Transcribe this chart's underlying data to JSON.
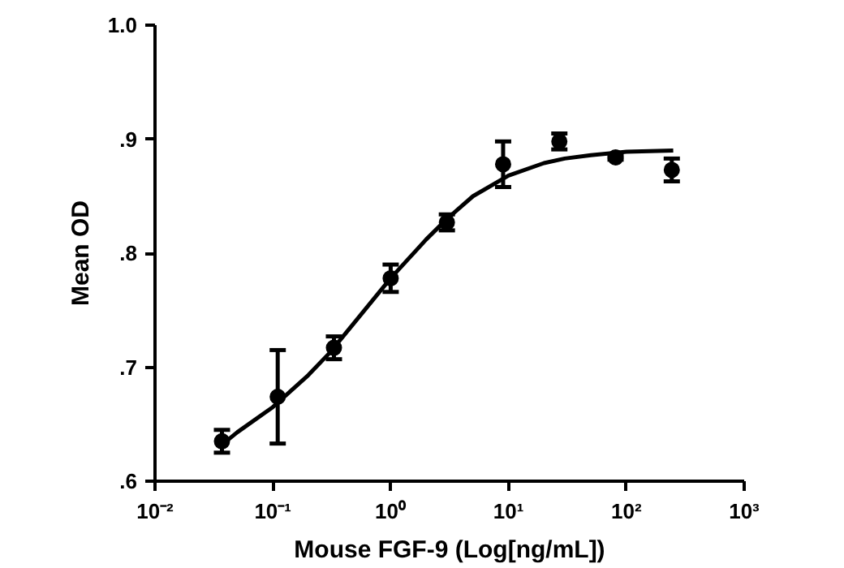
{
  "chart_data": {
    "type": "scatter",
    "xlabel": "Mouse FGF-9 (Log[ng/mL])",
    "ylabel": "Mean OD",
    "log": "x",
    "xlim": [
      0.01,
      1000
    ],
    "ylim": [
      0.6,
      1.0
    ],
    "grid": false,
    "xticks": [
      {
        "value": 0.01,
        "label": "10⁻²"
      },
      {
        "value": 0.1,
        "label": "10⁻¹"
      },
      {
        "value": 1,
        "label": "10⁰"
      },
      {
        "value": 10,
        "label": "10¹"
      },
      {
        "value": 100,
        "label": "10²"
      },
      {
        "value": 1000,
        "label": "10³"
      }
    ],
    "yticks": [
      {
        "value": 0.6,
        "label": ".6"
      },
      {
        "value": 0.7,
        "label": ".7"
      },
      {
        "value": 0.8,
        "label": ".8"
      },
      {
        "value": 0.9,
        "label": ".9"
      },
      {
        "value": 1.0,
        "label": "1.0"
      }
    ],
    "series": [
      {
        "marker": "circle",
        "color": "#000000",
        "x": [
          0.037,
          0.11,
          0.33,
          1,
          3,
          9,
          27,
          81,
          243
        ],
        "values": [
          0.635,
          0.674,
          0.717,
          0.778,
          0.827,
          0.878,
          0.898,
          0.884,
          0.873
        ],
        "errors": [
          0.01,
          0.041,
          0.01,
          0.012,
          0.007,
          0.02,
          0.007,
          0.002,
          0.01
        ]
      },
      {
        "type": "line",
        "marker": "none",
        "line_style": "solid",
        "color": "#000000",
        "x": [
          0.035,
          0.05,
          0.1,
          0.2,
          0.3,
          0.5,
          1,
          2,
          3,
          5,
          10,
          20,
          30,
          50,
          100,
          250
        ],
        "values": [
          0.63,
          0.643,
          0.665,
          0.693,
          0.712,
          0.74,
          0.778,
          0.812,
          0.83,
          0.85,
          0.868,
          0.879,
          0.883,
          0.886,
          0.889,
          0.89
        ]
      }
    ]
  }
}
